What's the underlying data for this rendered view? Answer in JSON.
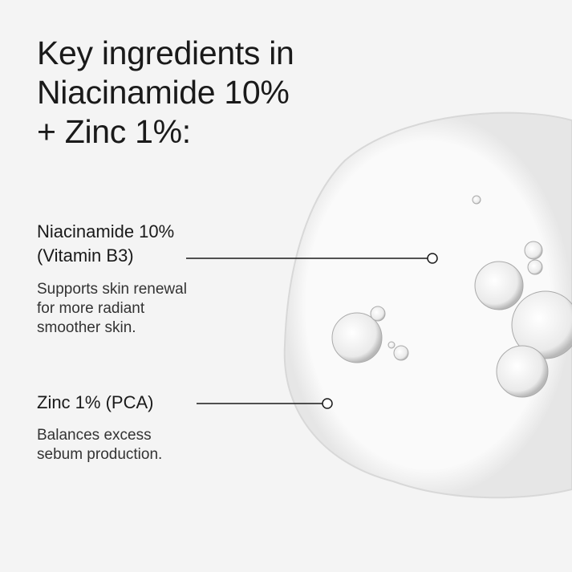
{
  "title": [
    "Key ingredients in",
    "Niacinamide 10%",
    "+ Zinc 1%:"
  ],
  "ingredients": [
    {
      "name": [
        "Niacinamide 10%",
        "(Vitamin B3)"
      ],
      "desc": [
        "Supports skin renewal",
        "for more radiant",
        "smoother skin."
      ]
    },
    {
      "name": [
        "Zinc 1% (PCA)"
      ],
      "desc": [
        "Balances excess",
        "sebum production."
      ]
    }
  ]
}
